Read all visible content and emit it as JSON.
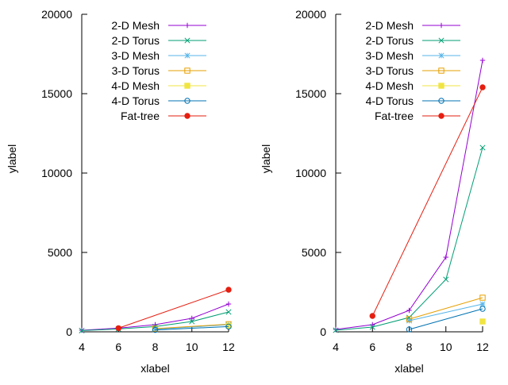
{
  "chart_data": [
    {
      "type": "line",
      "xlabel": "xlabel",
      "ylabel": "ylabel",
      "xlim": [
        4,
        12
      ],
      "ylim": [
        0,
        20000
      ],
      "xticks": [
        "4",
        "6",
        "8",
        "10",
        "12"
      ],
      "yticks": [
        "0",
        "5000",
        "10000",
        "15000",
        "20000"
      ],
      "grid": false,
      "legend_position": "top-right",
      "series": [
        {
          "name": "2-D Mesh",
          "color": "#9400d3",
          "marker": "plus",
          "x": [
            4,
            6,
            8,
            10,
            12
          ],
          "y": [
            100,
            230,
            450,
            850,
            1750
          ]
        },
        {
          "name": "2-D Torus",
          "color": "#009e73",
          "marker": "cross",
          "x": [
            4,
            6,
            8,
            10,
            12
          ],
          "y": [
            80,
            180,
            330,
            650,
            1250
          ]
        },
        {
          "name": "3-D Mesh",
          "color": "#56b4e9",
          "marker": "star",
          "x": [
            8,
            12
          ],
          "y": [
            160,
            450
          ]
        },
        {
          "name": "3-D Torus",
          "color": "#e69f00",
          "marker": "open-square",
          "x": [
            8,
            12
          ],
          "y": [
            200,
            480
          ]
        },
        {
          "name": "4-D Mesh",
          "color": "#f0e442",
          "marker": "filled-square",
          "x": [
            12
          ],
          "y": [
            380
          ]
        },
        {
          "name": "4-D Torus",
          "color": "#0072b2",
          "marker": "open-circle",
          "x": [
            8,
            12
          ],
          "y": [
            120,
            330
          ]
        },
        {
          "name": "Fat-tree",
          "color": "#e51e10",
          "marker": "filled-circle",
          "x": [
            6,
            12
          ],
          "y": [
            230,
            2650
          ]
        }
      ]
    },
    {
      "type": "line",
      "xlabel": "xlabel",
      "ylabel": "ylabel",
      "xlim": [
        4,
        12
      ],
      "ylim": [
        0,
        20000
      ],
      "xticks": [
        "4",
        "6",
        "8",
        "10",
        "12"
      ],
      "yticks": [
        "0",
        "5000",
        "10000",
        "15000",
        "20000"
      ],
      "grid": false,
      "legend_position": "top-right",
      "series": [
        {
          "name": "2-D Mesh",
          "color": "#9400d3",
          "marker": "plus",
          "x": [
            4,
            6,
            8,
            10,
            12
          ],
          "y": [
            150,
            450,
            1350,
            4700,
            17100
          ]
        },
        {
          "name": "2-D Torus",
          "color": "#009e73",
          "marker": "cross",
          "x": [
            4,
            6,
            8,
            10,
            12
          ],
          "y": [
            100,
            300,
            900,
            3300,
            11600
          ]
        },
        {
          "name": "3-D Mesh",
          "color": "#56b4e9",
          "marker": "star",
          "x": [
            8,
            12
          ],
          "y": [
            700,
            1750
          ]
        },
        {
          "name": "3-D Torus",
          "color": "#e69f00",
          "marker": "open-square",
          "x": [
            8,
            12
          ],
          "y": [
            800,
            2150
          ]
        },
        {
          "name": "4-D Mesh",
          "color": "#f0e442",
          "marker": "filled-square",
          "x": [
            12
          ],
          "y": [
            650
          ]
        },
        {
          "name": "4-D Torus",
          "color": "#0072b2",
          "marker": "open-circle",
          "x": [
            8,
            12
          ],
          "y": [
            150,
            1450
          ]
        },
        {
          "name": "Fat-tree",
          "color": "#e51e10",
          "marker": "filled-circle",
          "x": [
            6,
            12
          ],
          "y": [
            1000,
            15400
          ]
        }
      ]
    }
  ]
}
